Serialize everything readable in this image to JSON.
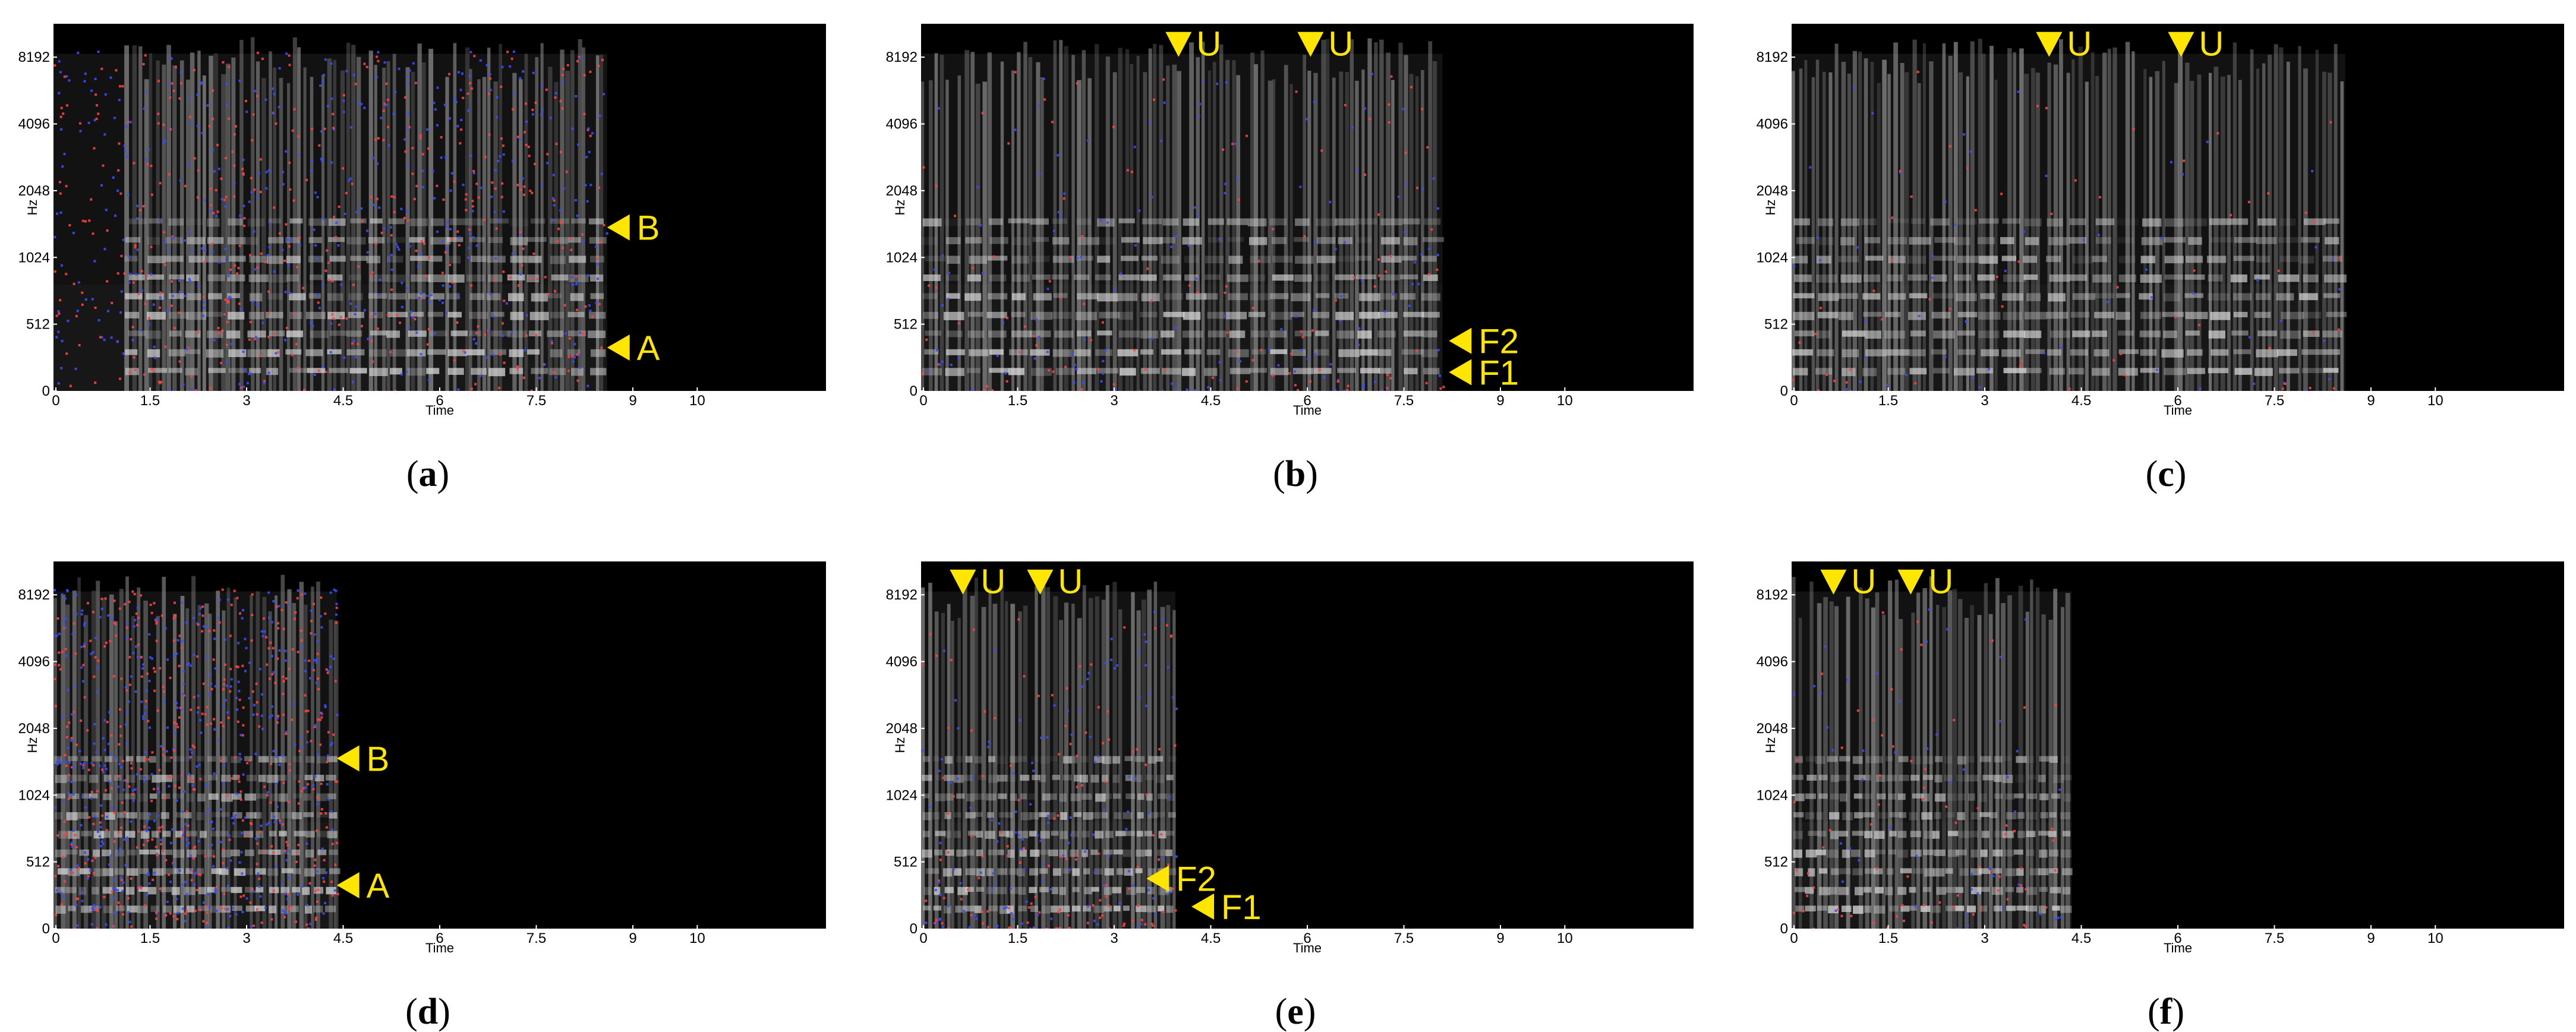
{
  "panels": [
    {
      "id": "a",
      "caption": {
        "open": "(",
        "letter": "a",
        "close": ")"
      },
      "chart_data": {
        "type": "heatmap",
        "xlabel": "Time",
        "ylabel": "Hz",
        "xlim": [
          0,
          12
        ],
        "y_ticks": [
          "0",
          "512",
          "1024",
          "2048",
          "4096",
          "8192"
        ],
        "x_ticks": [
          0,
          1.5,
          3,
          4.5,
          6,
          7.5,
          9,
          10
        ],
        "x_tick_labels": [
          "0",
          "1.5",
          "3",
          "4.5",
          "6",
          "7.5",
          "9",
          "10"
        ],
        "signal_end": 8.6,
        "speech_start": 1.1,
        "overlay_color_density": "high",
        "annotations": [
          {
            "label": "B",
            "direction": "left",
            "time": 8.6,
            "freq_tick": 2.45
          },
          {
            "label": "A",
            "direction": "left",
            "time": 8.6,
            "freq_tick": 0.65
          }
        ]
      }
    },
    {
      "id": "b",
      "caption": {
        "open": "(",
        "letter": "b",
        "close": ")"
      },
      "chart_data": {
        "type": "heatmap",
        "xlabel": "Time",
        "ylabel": "Hz",
        "xlim": [
          0,
          12
        ],
        "y_ticks": [
          "0",
          "512",
          "1024",
          "2048",
          "4096",
          "8192"
        ],
        "x_ticks": [
          0,
          1.5,
          3,
          4.5,
          6,
          7.5,
          9,
          10
        ],
        "x_tick_labels": [
          "0",
          "1.5",
          "3",
          "4.5",
          "6",
          "7.5",
          "9",
          "10"
        ],
        "signal_end": 8.1,
        "speech_start": 0.0,
        "overlay_color_density": "medium",
        "annotations": [
          {
            "label": "U",
            "direction": "down",
            "time": 4.0,
            "freq_tick": 5.2
          },
          {
            "label": "U",
            "direction": "down",
            "time": 6.05,
            "freq_tick": 5.2
          },
          {
            "label": "F2",
            "direction": "left",
            "time": 8.2,
            "freq_tick": 0.75
          },
          {
            "label": "F1",
            "direction": "left",
            "time": 8.2,
            "freq_tick": 0.28
          }
        ]
      }
    },
    {
      "id": "c",
      "caption": {
        "open": "(",
        "letter": "c",
        "close": ")"
      },
      "chart_data": {
        "type": "heatmap",
        "xlabel": "Time",
        "ylabel": "Hz",
        "xlim": [
          0,
          12
        ],
        "y_ticks": [
          "0",
          "512",
          "1024",
          "2048",
          "4096",
          "8192"
        ],
        "x_ticks": [
          0,
          1.5,
          3,
          4.5,
          6,
          7.5,
          9,
          10
        ],
        "x_tick_labels": [
          "0",
          "1.5",
          "3",
          "4.5",
          "6",
          "7.5",
          "9",
          "10"
        ],
        "signal_end": 8.6,
        "speech_start": 0.0,
        "overlay_color_density": "low",
        "annotations": [
          {
            "label": "U",
            "direction": "down",
            "time": 4.0,
            "freq_tick": 5.2
          },
          {
            "label": "U",
            "direction": "down",
            "time": 6.05,
            "freq_tick": 5.2
          }
        ]
      }
    },
    {
      "id": "d",
      "caption": {
        "open": "(",
        "letter": "d",
        "close": ")"
      },
      "chart_data": {
        "type": "heatmap",
        "xlabel": "Time",
        "ylabel": "Hz",
        "xlim": [
          0,
          12
        ],
        "y_ticks": [
          "0",
          "512",
          "1024",
          "2048",
          "4096",
          "8192"
        ],
        "x_ticks": [
          0,
          1.5,
          3,
          4.5,
          6,
          7.5,
          9,
          10
        ],
        "x_tick_labels": [
          "0",
          "1.5",
          "3",
          "4.5",
          "6",
          "7.5",
          "9",
          "10"
        ],
        "signal_end": 4.4,
        "speech_start": 0.0,
        "overlay_color_density": "high",
        "annotations": [
          {
            "label": "B",
            "direction": "left",
            "time": 4.4,
            "freq_tick": 2.55
          },
          {
            "label": "A",
            "direction": "left",
            "time": 4.4,
            "freq_tick": 0.65
          }
        ]
      }
    },
    {
      "id": "e",
      "caption": {
        "open": "(",
        "letter": "e",
        "close": ")"
      },
      "chart_data": {
        "type": "heatmap",
        "xlabel": "Time",
        "ylabel": "Hz",
        "xlim": [
          0,
          12
        ],
        "y_ticks": [
          "0",
          "512",
          "1024",
          "2048",
          "4096",
          "8192"
        ],
        "x_ticks": [
          0,
          1.5,
          3,
          4.5,
          6,
          7.5,
          9,
          10
        ],
        "x_tick_labels": [
          "0",
          "1.5",
          "3",
          "4.5",
          "6",
          "7.5",
          "9",
          "10"
        ],
        "signal_end": 3.95,
        "speech_start": 0.0,
        "overlay_color_density": "medium",
        "annotations": [
          {
            "label": "U",
            "direction": "down",
            "time": 0.65,
            "freq_tick": 5.2
          },
          {
            "label": "U",
            "direction": "down",
            "time": 1.85,
            "freq_tick": 5.2
          },
          {
            "label": "F2",
            "direction": "left",
            "time": 3.5,
            "freq_tick": 0.75
          },
          {
            "label": "F1",
            "direction": "left",
            "time": 4.2,
            "freq_tick": 0.33
          }
        ]
      }
    },
    {
      "id": "f",
      "caption": {
        "open": "(",
        "letter": "f",
        "close": ")"
      },
      "chart_data": {
        "type": "heatmap",
        "xlabel": "Time",
        "ylabel": "Hz",
        "xlim": [
          0,
          12
        ],
        "y_ticks": [
          "0",
          "512",
          "1024",
          "2048",
          "4096",
          "8192"
        ],
        "x_ticks": [
          0,
          1.5,
          3,
          4.5,
          6,
          7.5,
          9,
          10
        ],
        "x_tick_labels": [
          "0",
          "1.5",
          "3",
          "4.5",
          "6",
          "7.5",
          "9",
          "10"
        ],
        "signal_end": 4.35,
        "speech_start": 0.0,
        "overlay_color_density": "low",
        "annotations": [
          {
            "label": "U",
            "direction": "down",
            "time": 0.65,
            "freq_tick": 5.2
          },
          {
            "label": "U",
            "direction": "down",
            "time": 1.85,
            "freq_tick": 5.2
          }
        ]
      }
    }
  ],
  "colors": {
    "background": "#000000",
    "annotation": "#ffe600",
    "harmonic": "#d9d9d9",
    "overlay_red": "#ff4040",
    "overlay_blue": "#3a4dff"
  }
}
